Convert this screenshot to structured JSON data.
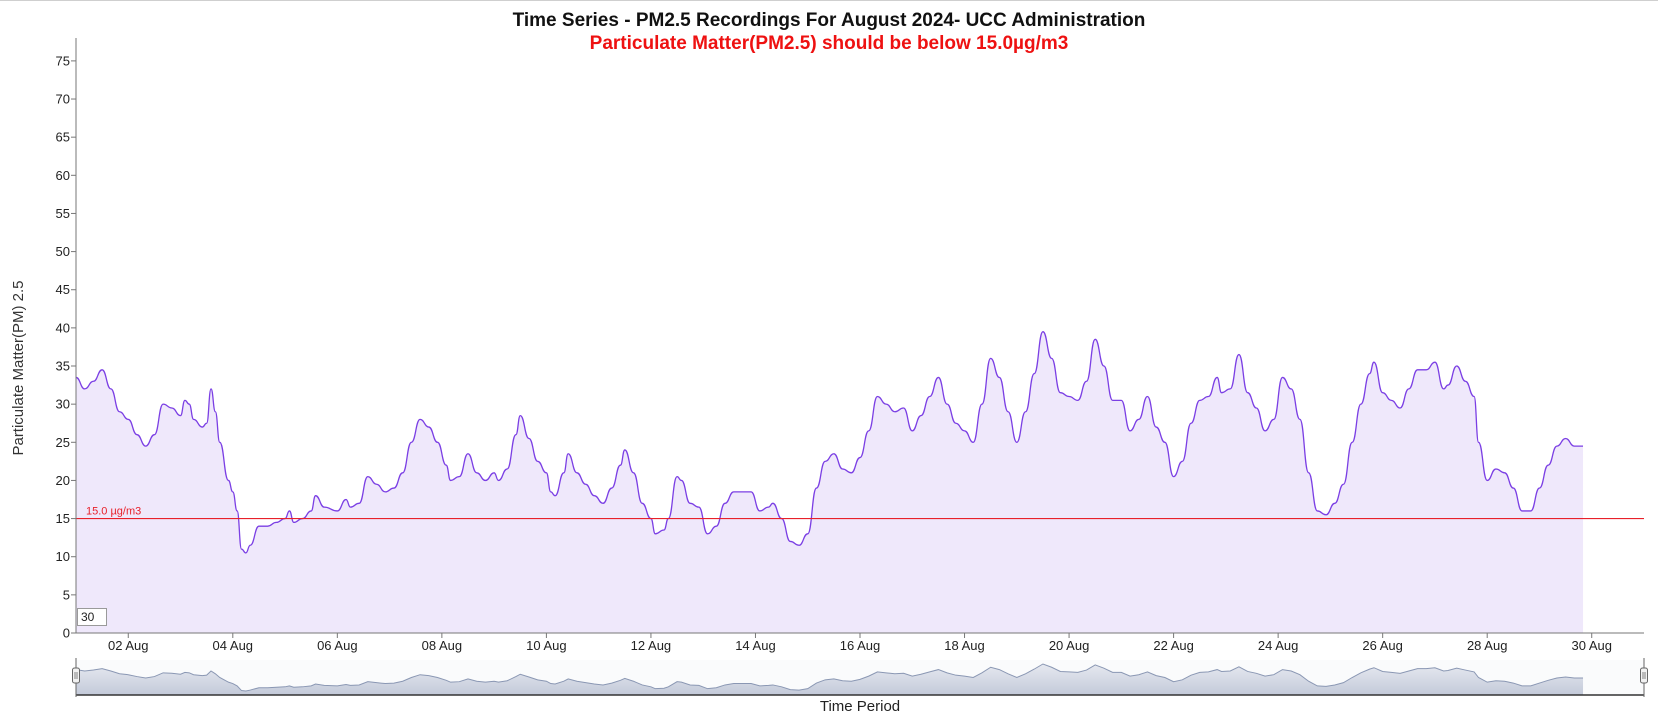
{
  "header": {
    "title": "Time Series - PM2.5 Recordings For August 2024- UCC Administration",
    "subtitle": "Particulate Matter(PM2.5) should be below 15.0µg/m3"
  },
  "controls": {
    "window_value": "30"
  },
  "colors": {
    "line": "#7b3fe4",
    "area": "#efe8fb",
    "threshold": "#e8202a",
    "navigator_line": "#8a97b3",
    "navigator_fill": "#c3cad9",
    "subtitle": "#ee1111"
  },
  "chart_data": {
    "type": "area",
    "title": "Time Series - PM2.5 Recordings For August 2024- UCC Administration",
    "subtitle": "Particulate Matter(PM2.5) should be below 15.0µg/m3",
    "ylabel": "Particulate Matter(PM) 2.5",
    "xlabel": "Time Period",
    "ylim": [
      0,
      78
    ],
    "yticks": [
      0,
      5,
      10,
      15,
      20,
      25,
      30,
      35,
      40,
      45,
      50,
      55,
      60,
      65,
      70,
      75
    ],
    "xlim": [
      "2024-08-01 00:00",
      "2024-08-31 00:00"
    ],
    "xticks": [
      {
        "date": "2024-08-02",
        "label": "02 Aug"
      },
      {
        "date": "2024-08-04",
        "label": "04 Aug"
      },
      {
        "date": "2024-08-06",
        "label": "06 Aug"
      },
      {
        "date": "2024-08-08",
        "label": "08 Aug"
      },
      {
        "date": "2024-08-10",
        "label": "10 Aug"
      },
      {
        "date": "2024-08-12",
        "label": "12 Aug"
      },
      {
        "date": "2024-08-14",
        "label": "14 Aug"
      },
      {
        "date": "2024-08-16",
        "label": "16 Aug"
      },
      {
        "date": "2024-08-18",
        "label": "18 Aug"
      },
      {
        "date": "2024-08-20",
        "label": "20 Aug"
      },
      {
        "date": "2024-08-22",
        "label": "22 Aug"
      },
      {
        "date": "2024-08-24",
        "label": "24 Aug"
      },
      {
        "date": "2024-08-26",
        "label": "26 Aug"
      },
      {
        "date": "2024-08-28",
        "label": "28 Aug"
      },
      {
        "date": "2024-08-30",
        "label": "30 Aug"
      }
    ],
    "threshold": {
      "value": 15.0,
      "label": "15.0 µg/m3"
    },
    "grid": false,
    "legend": "none",
    "series": [
      {
        "points": [
          [
            "2024-08-01 00:00",
            33.5
          ],
          [
            "2024-08-01 04:00",
            32
          ],
          [
            "2024-08-01 08:00",
            33
          ],
          [
            "2024-08-01 12:00",
            34.5
          ],
          [
            "2024-08-01 16:00",
            32
          ],
          [
            "2024-08-01 20:00",
            29
          ],
          [
            "2024-08-02 00:00",
            28
          ],
          [
            "2024-08-02 04:00",
            26
          ],
          [
            "2024-08-02 08:00",
            24.5
          ],
          [
            "2024-08-02 12:00",
            26
          ],
          [
            "2024-08-02 16:00",
            30
          ],
          [
            "2024-08-02 20:00",
            29.5
          ],
          [
            "2024-08-03 00:00",
            28.5
          ],
          [
            "2024-08-03 02:00",
            30.5
          ],
          [
            "2024-08-03 04:00",
            30
          ],
          [
            "2024-08-03 06:00",
            28
          ],
          [
            "2024-08-03 10:00",
            27
          ],
          [
            "2024-08-03 12:00",
            27.5
          ],
          [
            "2024-08-03 14:00",
            32
          ],
          [
            "2024-08-03 16:00",
            29
          ],
          [
            "2024-08-03 18:00",
            25
          ],
          [
            "2024-08-03 22:00",
            20
          ],
          [
            "2024-08-04 00:00",
            18.5
          ],
          [
            "2024-08-04 02:00",
            16
          ],
          [
            "2024-08-04 04:00",
            11
          ],
          [
            "2024-08-04 06:00",
            10.5
          ],
          [
            "2024-08-04 08:00",
            11.5
          ],
          [
            "2024-08-04 12:00",
            14
          ],
          [
            "2024-08-04 16:00",
            14
          ],
          [
            "2024-08-04 20:00",
            14.5
          ],
          [
            "2024-08-05 00:00",
            15
          ],
          [
            "2024-08-05 02:00",
            16
          ],
          [
            "2024-08-05 04:00",
            14.5
          ],
          [
            "2024-08-05 08:00",
            15
          ],
          [
            "2024-08-05 12:00",
            16
          ],
          [
            "2024-08-05 14:00",
            18
          ],
          [
            "2024-08-05 18:00",
            16.5
          ],
          [
            "2024-08-06 00:00",
            16
          ],
          [
            "2024-08-06 04:00",
            17.5
          ],
          [
            "2024-08-06 06:00",
            16.5
          ],
          [
            "2024-08-06 10:00",
            17
          ],
          [
            "2024-08-06 14:00",
            20.5
          ],
          [
            "2024-08-06 18:00",
            19.5
          ],
          [
            "2024-08-06 22:00",
            18.5
          ],
          [
            "2024-08-07 02:00",
            19
          ],
          [
            "2024-08-07 06:00",
            21
          ],
          [
            "2024-08-07 10:00",
            25
          ],
          [
            "2024-08-07 14:00",
            28
          ],
          [
            "2024-08-07 18:00",
            27
          ],
          [
            "2024-08-07 22:00",
            25
          ],
          [
            "2024-08-08 02:00",
            22
          ],
          [
            "2024-08-08 04:00",
            20
          ],
          [
            "2024-08-08 08:00",
            20.5
          ],
          [
            "2024-08-08 12:00",
            23.5
          ],
          [
            "2024-08-08 16:00",
            21
          ],
          [
            "2024-08-08 20:00",
            20
          ],
          [
            "2024-08-09 00:00",
            21
          ],
          [
            "2024-08-09 02:00",
            20
          ],
          [
            "2024-08-09 06:00",
            21.5
          ],
          [
            "2024-08-09 10:00",
            26
          ],
          [
            "2024-08-09 12:00",
            28.5
          ],
          [
            "2024-08-09 16:00",
            25.5
          ],
          [
            "2024-08-09 20:00",
            22.5
          ],
          [
            "2024-08-10 00:00",
            21
          ],
          [
            "2024-08-10 02:00",
            18.5
          ],
          [
            "2024-08-10 04:00",
            18
          ],
          [
            "2024-08-10 08:00",
            21
          ],
          [
            "2024-08-10 10:00",
            23.5
          ],
          [
            "2024-08-10 14:00",
            21
          ],
          [
            "2024-08-10 18:00",
            19.5
          ],
          [
            "2024-08-10 22:00",
            18
          ],
          [
            "2024-08-11 02:00",
            17
          ],
          [
            "2024-08-11 06:00",
            19
          ],
          [
            "2024-08-11 10:00",
            22
          ],
          [
            "2024-08-11 12:00",
            24
          ],
          [
            "2024-08-11 16:00",
            21
          ],
          [
            "2024-08-11 20:00",
            17
          ],
          [
            "2024-08-12 00:00",
            15
          ],
          [
            "2024-08-12 02:00",
            13
          ],
          [
            "2024-08-12 06:00",
            13.5
          ],
          [
            "2024-08-12 08:00",
            15
          ],
          [
            "2024-08-12 12:00",
            20.5
          ],
          [
            "2024-08-12 14:00",
            20
          ],
          [
            "2024-08-12 18:00",
            17
          ],
          [
            "2024-08-12 22:00",
            16.5
          ],
          [
            "2024-08-13 02:00",
            13
          ],
          [
            "2024-08-13 06:00",
            14
          ],
          [
            "2024-08-13 10:00",
            17
          ],
          [
            "2024-08-13 14:00",
            18.5
          ],
          [
            "2024-08-13 18:00",
            18.5
          ],
          [
            "2024-08-13 22:00",
            18.5
          ],
          [
            "2024-08-14 02:00",
            16
          ],
          [
            "2024-08-14 06:00",
            16.5
          ],
          [
            "2024-08-14 08:00",
            17
          ],
          [
            "2024-08-14 12:00",
            15
          ],
          [
            "2024-08-14 16:00",
            12
          ],
          [
            "2024-08-14 20:00",
            11.5
          ],
          [
            "2024-08-15 00:00",
            13
          ],
          [
            "2024-08-15 04:00",
            19
          ],
          [
            "2024-08-15 08:00",
            22.5
          ],
          [
            "2024-08-15 12:00",
            23.5
          ],
          [
            "2024-08-15 16:00",
            21.5
          ],
          [
            "2024-08-15 20:00",
            21
          ],
          [
            "2024-08-16 00:00",
            23
          ],
          [
            "2024-08-16 04:00",
            26.5
          ],
          [
            "2024-08-16 08:00",
            31
          ],
          [
            "2024-08-16 12:00",
            30
          ],
          [
            "2024-08-16 16:00",
            29
          ],
          [
            "2024-08-16 20:00",
            29.5
          ],
          [
            "2024-08-17 00:00",
            26.5
          ],
          [
            "2024-08-17 04:00",
            28.5
          ],
          [
            "2024-08-17 08:00",
            31
          ],
          [
            "2024-08-17 12:00",
            33.5
          ],
          [
            "2024-08-17 16:00",
            30
          ],
          [
            "2024-08-17 20:00",
            27.5
          ],
          [
            "2024-08-18 00:00",
            26.5
          ],
          [
            "2024-08-18 04:00",
            25
          ],
          [
            "2024-08-18 08:00",
            30
          ],
          [
            "2024-08-18 12:00",
            36
          ],
          [
            "2024-08-18 16:00",
            33.5
          ],
          [
            "2024-08-18 20:00",
            29
          ],
          [
            "2024-08-19 00:00",
            25
          ],
          [
            "2024-08-19 04:00",
            29
          ],
          [
            "2024-08-19 08:00",
            34
          ],
          [
            "2024-08-19 12:00",
            39.5
          ],
          [
            "2024-08-19 16:00",
            36
          ],
          [
            "2024-08-19 20:00",
            31.5
          ],
          [
            "2024-08-20 00:00",
            31
          ],
          [
            "2024-08-20 04:00",
            30.5
          ],
          [
            "2024-08-20 08:00",
            33
          ],
          [
            "2024-08-20 12:00",
            38.5
          ],
          [
            "2024-08-20 16:00",
            35
          ],
          [
            "2024-08-20 20:00",
            30.5
          ],
          [
            "2024-08-21 00:00",
            30.5
          ],
          [
            "2024-08-21 04:00",
            26.5
          ],
          [
            "2024-08-21 08:00",
            28
          ],
          [
            "2024-08-21 12:00",
            31
          ],
          [
            "2024-08-21 16:00",
            27
          ],
          [
            "2024-08-21 20:00",
            25
          ],
          [
            "2024-08-22 00:00",
            20.5
          ],
          [
            "2024-08-22 04:00",
            22.5
          ],
          [
            "2024-08-22 08:00",
            27.5
          ],
          [
            "2024-08-22 12:00",
            30.5
          ],
          [
            "2024-08-22 16:00",
            31
          ],
          [
            "2024-08-22 20:00",
            33.5
          ],
          [
            "2024-08-22 22:00",
            31.5
          ],
          [
            "2024-08-23 02:00",
            32
          ],
          [
            "2024-08-23 06:00",
            36.5
          ],
          [
            "2024-08-23 10:00",
            31.5
          ],
          [
            "2024-08-23 14:00",
            29.5
          ],
          [
            "2024-08-23 18:00",
            26.5
          ],
          [
            "2024-08-23 22:00",
            28
          ],
          [
            "2024-08-24 02:00",
            33.5
          ],
          [
            "2024-08-24 06:00",
            32
          ],
          [
            "2024-08-24 10:00",
            28
          ],
          [
            "2024-08-24 14:00",
            21
          ],
          [
            "2024-08-24 18:00",
            16
          ],
          [
            "2024-08-24 22:00",
            15.5
          ],
          [
            "2024-08-25 02:00",
            17
          ],
          [
            "2024-08-25 06:00",
            19.5
          ],
          [
            "2024-08-25 10:00",
            25
          ],
          [
            "2024-08-25 14:00",
            30
          ],
          [
            "2024-08-25 18:00",
            34
          ],
          [
            "2024-08-25 20:00",
            35.5
          ],
          [
            "2024-08-26 00:00",
            31.5
          ],
          [
            "2024-08-26 04:00",
            30.5
          ],
          [
            "2024-08-26 08:00",
            29.5
          ],
          [
            "2024-08-26 12:00",
            32
          ],
          [
            "2024-08-26 16:00",
            34.5
          ],
          [
            "2024-08-26 20:00",
            34.5
          ],
          [
            "2024-08-27 00:00",
            35.5
          ],
          [
            "2024-08-27 04:00",
            32
          ],
          [
            "2024-08-27 06:00",
            32.5
          ],
          [
            "2024-08-27 10:00",
            35
          ],
          [
            "2024-08-27 14:00",
            33
          ],
          [
            "2024-08-27 18:00",
            31
          ],
          [
            "2024-08-27 20:00",
            25
          ],
          [
            "2024-08-28 00:00",
            20
          ],
          [
            "2024-08-28 04:00",
            21.5
          ],
          [
            "2024-08-28 08:00",
            21
          ],
          [
            "2024-08-28 12:00",
            19
          ],
          [
            "2024-08-28 16:00",
            16
          ],
          [
            "2024-08-28 20:00",
            16
          ],
          [
            "2024-08-29 00:00",
            19
          ],
          [
            "2024-08-29 04:00",
            22
          ],
          [
            "2024-08-29 08:00",
            24.5
          ],
          [
            "2024-08-29 12:00",
            25.5
          ],
          [
            "2024-08-29 16:00",
            24.5
          ],
          [
            "2024-08-29 20:00",
            24.5
          ]
        ]
      }
    ]
  }
}
